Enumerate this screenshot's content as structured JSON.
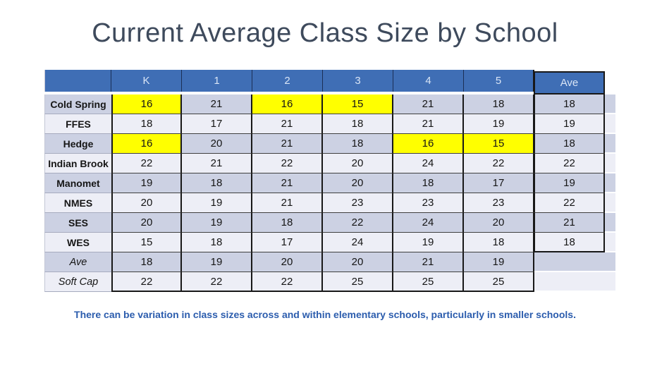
{
  "title": "Current Average Class Size by School",
  "caption": "There can be variation in class sizes across and within elementary schools, particularly in smaller schools.",
  "colors": {
    "header_bg": "#3F6EB5",
    "header_text": "#D9E5F6",
    "band_dark": "#CCD1E3",
    "band_light": "#EDEEF6",
    "highlight": "#FFFF00",
    "title_text": "#3E4A5C",
    "caption_text": "#2B5CAD",
    "cell_text": "#161616"
  },
  "chart_data": {
    "type": "table",
    "title": "Current Average Class Size by School",
    "columns": [
      "",
      "K",
      "1",
      "2",
      "3",
      "4",
      "5",
      "Ave"
    ],
    "rows": [
      {
        "label": "Cold Spring",
        "values": [
          16,
          21,
          16,
          15,
          21,
          18
        ],
        "ave": 18,
        "highlight": [
          0,
          2,
          3
        ],
        "italic": false
      },
      {
        "label": "FFES",
        "values": [
          18,
          17,
          21,
          18,
          21,
          19
        ],
        "ave": 19,
        "highlight": [],
        "italic": false
      },
      {
        "label": "Hedge",
        "values": [
          16,
          20,
          21,
          18,
          16,
          15
        ],
        "ave": 18,
        "highlight": [
          0,
          4,
          5
        ],
        "italic": false
      },
      {
        "label": "Indian Brook",
        "values": [
          22,
          21,
          22,
          20,
          24,
          22
        ],
        "ave": 22,
        "highlight": [],
        "italic": false
      },
      {
        "label": "Manomet",
        "values": [
          19,
          18,
          21,
          20,
          18,
          17
        ],
        "ave": 19,
        "highlight": [],
        "italic": false
      },
      {
        "label": "NMES",
        "values": [
          20,
          19,
          21,
          23,
          23,
          23
        ],
        "ave": 22,
        "highlight": [],
        "italic": false
      },
      {
        "label": "SES",
        "values": [
          20,
          19,
          18,
          22,
          24,
          20
        ],
        "ave": 21,
        "highlight": [],
        "italic": false
      },
      {
        "label": "WES",
        "values": [
          15,
          18,
          17,
          24,
          19,
          18
        ],
        "ave": 18,
        "highlight": [],
        "italic": false
      },
      {
        "label": "Ave",
        "values": [
          18,
          19,
          20,
          20,
          21,
          19
        ],
        "ave": null,
        "highlight": [],
        "italic": true
      },
      {
        "label": "Soft Cap",
        "values": [
          22,
          22,
          22,
          25,
          25,
          25
        ],
        "ave": null,
        "highlight": [],
        "italic": true
      }
    ]
  }
}
